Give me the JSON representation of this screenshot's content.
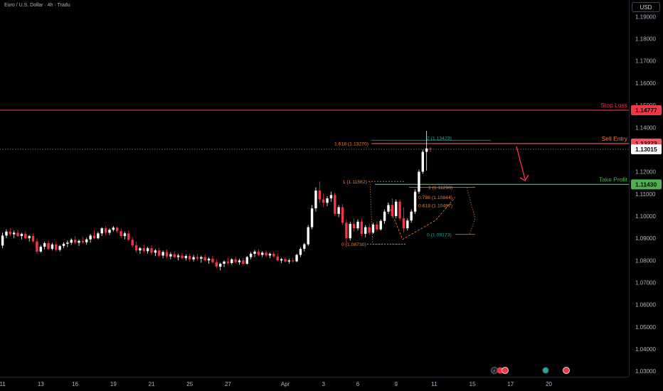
{
  "header": {
    "symbol_title": "Euro / U.S. Dollar · 4h · Tradu",
    "currency": "USD"
  },
  "chart_data": {
    "type": "candlestick",
    "ylim": [
      1.0275,
      1.1975
    ],
    "price_ticks": [
      "1.19000",
      "1.18000",
      "1.17000",
      "1.16000",
      "1.15000",
      "1.14000",
      "1.12000",
      "1.11000",
      "1.10000",
      "1.09000",
      "1.08000",
      "1.07000",
      "1.06000",
      "1.05000",
      "1.04000",
      "1.03000"
    ],
    "time_labels": [
      {
        "label": "11",
        "bar": 0
      },
      {
        "label": "13",
        "bar": 10
      },
      {
        "label": "16",
        "bar": 19
      },
      {
        "label": "19",
        "bar": 29
      },
      {
        "label": "21",
        "bar": 39
      },
      {
        "label": "25",
        "bar": 49
      },
      {
        "label": "27",
        "bar": 59
      },
      {
        "label": "Apr",
        "bar": 74
      },
      {
        "label": "3",
        "bar": 84
      },
      {
        "label": "6",
        "bar": 93
      },
      {
        "label": "9",
        "bar": 103
      },
      {
        "label": "11",
        "bar": 113
      },
      {
        "label": "15",
        "bar": 123
      },
      {
        "label": "17",
        "bar": 133
      },
      {
        "label": "20",
        "bar": 143
      }
    ],
    "colors": {
      "up": "#ffffff",
      "down": "#f23645",
      "stop": "#f23645",
      "entry": "#f7525f",
      "tp": "#4caf50",
      "fib": "#f57c3b",
      "fib_green": "#26a69a",
      "arrow": "#f23645"
    },
    "levels": {
      "stop_loss": {
        "label": "Stop Loss",
        "price": 1.14777,
        "price_text": "1.14777"
      },
      "sell_entry": {
        "label": "Sell Entry",
        "price": 1.13273,
        "price_text": "1.13273"
      },
      "take_profit": {
        "label": "Take Profit",
        "price": 1.1143,
        "price_text": "1.11430"
      },
      "last_price": {
        "price": 1.13015,
        "price_text": "1.13015"
      }
    },
    "fib_labels": {
      "f1618": "1.618 (1.13270)",
      "f2": "2 (1.13423)",
      "f1": "1 (1.11562)",
      "f0": "0 (1.08730)",
      "r1": "1 (1.11298)",
      "r786": "0.786 (1.10844)",
      "r618": "0.618 (1.10487)",
      "r0": "0 (1.09173)"
    },
    "candles": [
      {
        "o": 1.0867,
        "h": 1.0925,
        "l": 1.0855,
        "c": 1.0912
      },
      {
        "o": 1.0912,
        "h": 1.094,
        "l": 1.09,
        "c": 1.093
      },
      {
        "o": 1.093,
        "h": 1.0945,
        "l": 1.091,
        "c": 1.0918
      },
      {
        "o": 1.0918,
        "h": 1.0935,
        "l": 1.09,
        "c": 1.0925
      },
      {
        "o": 1.0925,
        "h": 1.0938,
        "l": 1.0905,
        "c": 1.091
      },
      {
        "o": 1.091,
        "h": 1.0925,
        "l": 1.0895,
        "c": 1.092
      },
      {
        "o": 1.092,
        "h": 1.0932,
        "l": 1.0895,
        "c": 1.09
      },
      {
        "o": 1.09,
        "h": 1.0915,
        "l": 1.0885,
        "c": 1.091
      },
      {
        "o": 1.091,
        "h": 1.0922,
        "l": 1.088,
        "c": 1.0886
      },
      {
        "o": 1.0886,
        "h": 1.09,
        "l": 1.083,
        "c": 1.084
      },
      {
        "o": 1.084,
        "h": 1.087,
        "l": 1.0835,
        "c": 1.0862
      },
      {
        "o": 1.0862,
        "h": 1.0885,
        "l": 1.085,
        "c": 1.0878
      },
      {
        "o": 1.0878,
        "h": 1.089,
        "l": 1.0845,
        "c": 1.0852
      },
      {
        "o": 1.0852,
        "h": 1.088,
        "l": 1.0845,
        "c": 1.0872
      },
      {
        "o": 1.0872,
        "h": 1.0885,
        "l": 1.084,
        "c": 1.0848
      },
      {
        "o": 1.0848,
        "h": 1.087,
        "l": 1.084,
        "c": 1.0865
      },
      {
        "o": 1.0865,
        "h": 1.0882,
        "l": 1.0855,
        "c": 1.0875
      },
      {
        "o": 1.0875,
        "h": 1.089,
        "l": 1.086,
        "c": 1.088
      },
      {
        "o": 1.088,
        "h": 1.09,
        "l": 1.087,
        "c": 1.0893
      },
      {
        "o": 1.0893,
        "h": 1.091,
        "l": 1.0875,
        "c": 1.088
      },
      {
        "o": 1.088,
        "h": 1.0895,
        "l": 1.0865,
        "c": 1.0888
      },
      {
        "o": 1.0888,
        "h": 1.0905,
        "l": 1.0875,
        "c": 1.0882
      },
      {
        "o": 1.0882,
        "h": 1.0902,
        "l": 1.087,
        "c": 1.0895
      },
      {
        "o": 1.0895,
        "h": 1.092,
        "l": 1.088,
        "c": 1.0912
      },
      {
        "o": 1.0912,
        "h": 1.0935,
        "l": 1.0895,
        "c": 1.09
      },
      {
        "o": 1.09,
        "h": 1.093,
        "l": 1.0895,
        "c": 1.0922
      },
      {
        "o": 1.0922,
        "h": 1.095,
        "l": 1.091,
        "c": 1.0945
      },
      {
        "o": 1.0945,
        "h": 1.0955,
        "l": 1.0915,
        "c": 1.0925
      },
      {
        "o": 1.0925,
        "h": 1.0945,
        "l": 1.0915,
        "c": 1.0938
      },
      {
        "o": 1.0938,
        "h": 1.0955,
        "l": 1.093,
        "c": 1.0948
      },
      {
        "o": 1.0948,
        "h": 1.0955,
        "l": 1.0925,
        "c": 1.0932
      },
      {
        "o": 1.0932,
        "h": 1.0945,
        "l": 1.09,
        "c": 1.091
      },
      {
        "o": 1.091,
        "h": 1.093,
        "l": 1.0895,
        "c": 1.0922
      },
      {
        "o": 1.0922,
        "h": 1.0935,
        "l": 1.0885,
        "c": 1.0893
      },
      {
        "o": 1.0893,
        "h": 1.0905,
        "l": 1.086,
        "c": 1.0868
      },
      {
        "o": 1.0868,
        "h": 1.0885,
        "l": 1.0835,
        "c": 1.0845
      },
      {
        "o": 1.0845,
        "h": 1.086,
        "l": 1.083,
        "c": 1.0855
      },
      {
        "o": 1.0855,
        "h": 1.087,
        "l": 1.0835,
        "c": 1.0842
      },
      {
        "o": 1.0842,
        "h": 1.0862,
        "l": 1.083,
        "c": 1.0855
      },
      {
        "o": 1.0855,
        "h": 1.0868,
        "l": 1.0825,
        "c": 1.0835
      },
      {
        "o": 1.0835,
        "h": 1.0852,
        "l": 1.082,
        "c": 1.0845
      },
      {
        "o": 1.0845,
        "h": 1.0858,
        "l": 1.0815,
        "c": 1.0822
      },
      {
        "o": 1.0822,
        "h": 1.0845,
        "l": 1.081,
        "c": 1.0838
      },
      {
        "o": 1.0838,
        "h": 1.085,
        "l": 1.081,
        "c": 1.0818
      },
      {
        "o": 1.0818,
        "h": 1.0838,
        "l": 1.0805,
        "c": 1.0828
      },
      {
        "o": 1.0828,
        "h": 1.0842,
        "l": 1.081,
        "c": 1.0815
      },
      {
        "o": 1.0815,
        "h": 1.083,
        "l": 1.08,
        "c": 1.0822
      },
      {
        "o": 1.0822,
        "h": 1.0835,
        "l": 1.0805,
        "c": 1.081
      },
      {
        "o": 1.081,
        "h": 1.0828,
        "l": 1.08,
        "c": 1.082
      },
      {
        "o": 1.082,
        "h": 1.083,
        "l": 1.0795,
        "c": 1.0805
      },
      {
        "o": 1.0805,
        "h": 1.0825,
        "l": 1.0795,
        "c": 1.0815
      },
      {
        "o": 1.0815,
        "h": 1.083,
        "l": 1.08,
        "c": 1.0808
      },
      {
        "o": 1.0808,
        "h": 1.0822,
        "l": 1.079,
        "c": 1.0815
      },
      {
        "o": 1.0815,
        "h": 1.0828,
        "l": 1.0795,
        "c": 1.08
      },
      {
        "o": 1.08,
        "h": 1.0815,
        "l": 1.0785,
        "c": 1.0808
      },
      {
        "o": 1.0808,
        "h": 1.082,
        "l": 1.0785,
        "c": 1.0792
      },
      {
        "o": 1.0792,
        "h": 1.0805,
        "l": 1.0765,
        "c": 1.0772
      },
      {
        "o": 1.0772,
        "h": 1.079,
        "l": 1.0755,
        "c": 1.0785
      },
      {
        "o": 1.0785,
        "h": 1.08,
        "l": 1.077,
        "c": 1.0795
      },
      {
        "o": 1.0795,
        "h": 1.0812,
        "l": 1.078,
        "c": 1.0788
      },
      {
        "o": 1.0788,
        "h": 1.081,
        "l": 1.078,
        "c": 1.0805
      },
      {
        "o": 1.0805,
        "h": 1.0818,
        "l": 1.0785,
        "c": 1.0792
      },
      {
        "o": 1.0792,
        "h": 1.0808,
        "l": 1.078,
        "c": 1.08
      },
      {
        "o": 1.08,
        "h": 1.0812,
        "l": 1.0778,
        "c": 1.0785
      },
      {
        "o": 1.0785,
        "h": 1.082,
        "l": 1.078,
        "c": 1.0815
      },
      {
        "o": 1.0815,
        "h": 1.0838,
        "l": 1.0805,
        "c": 1.083
      },
      {
        "o": 1.083,
        "h": 1.0848,
        "l": 1.0815,
        "c": 1.084
      },
      {
        "o": 1.084,
        "h": 1.0852,
        "l": 1.0818,
        "c": 1.0825
      },
      {
        "o": 1.0825,
        "h": 1.0842,
        "l": 1.0815,
        "c": 1.0835
      },
      {
        "o": 1.0835,
        "h": 1.0845,
        "l": 1.0815,
        "c": 1.0822
      },
      {
        "o": 1.0822,
        "h": 1.0835,
        "l": 1.081,
        "c": 1.083
      },
      {
        "o": 1.083,
        "h": 1.084,
        "l": 1.0812,
        "c": 1.0818
      },
      {
        "o": 1.0818,
        "h": 1.0832,
        "l": 1.0795,
        "c": 1.08
      },
      {
        "o": 1.08,
        "h": 1.0812,
        "l": 1.0788,
        "c": 1.0806
      },
      {
        "o": 1.0806,
        "h": 1.0815,
        "l": 1.079,
        "c": 1.0795
      },
      {
        "o": 1.0795,
        "h": 1.0808,
        "l": 1.0785,
        "c": 1.08
      },
      {
        "o": 1.08,
        "h": 1.0812,
        "l": 1.079,
        "c": 1.0796
      },
      {
        "o": 1.0796,
        "h": 1.083,
        "l": 1.0792,
        "c": 1.0825
      },
      {
        "o": 1.0825,
        "h": 1.086,
        "l": 1.0815,
        "c": 1.0852
      },
      {
        "o": 1.0852,
        "h": 1.088,
        "l": 1.084,
        "c": 1.0873
      },
      {
        "o": 1.0873,
        "h": 1.096,
        "l": 1.0865,
        "c": 1.095
      },
      {
        "o": 1.095,
        "h": 1.105,
        "l": 1.094,
        "c": 1.1035
      },
      {
        "o": 1.1035,
        "h": 1.113,
        "l": 1.102,
        "c": 1.1115
      },
      {
        "o": 1.1115,
        "h": 1.1156,
        "l": 1.106,
        "c": 1.1075
      },
      {
        "o": 1.1075,
        "h": 1.11,
        "l": 1.104,
        "c": 1.106
      },
      {
        "o": 1.106,
        "h": 1.109,
        "l": 1.1045,
        "c": 1.108
      },
      {
        "o": 1.108,
        "h": 1.111,
        "l": 1.1065,
        "c": 1.1095
      },
      {
        "o": 1.1095,
        "h": 1.1105,
        "l": 1.1,
        "c": 1.101
      },
      {
        "o": 1.101,
        "h": 1.105,
        "l": 1.0995,
        "c": 1.104
      },
      {
        "o": 1.104,
        "h": 1.1055,
        "l": 1.096,
        "c": 1.097
      },
      {
        "o": 1.097,
        "h": 1.0985,
        "l": 1.088,
        "c": 1.09
      },
      {
        "o": 1.09,
        "h": 1.0975,
        "l": 1.089,
        "c": 1.0965
      },
      {
        "o": 1.0965,
        "h": 1.099,
        "l": 1.093,
        "c": 1.0945
      },
      {
        "o": 1.0945,
        "h": 1.0985,
        "l": 1.0935,
        "c": 1.0975
      },
      {
        "o": 1.0975,
        "h": 1.099,
        "l": 1.091,
        "c": 1.092
      },
      {
        "o": 1.092,
        "h": 1.096,
        "l": 1.0905,
        "c": 1.095
      },
      {
        "o": 1.095,
        "h": 1.0965,
        "l": 1.0915,
        "c": 1.0925
      },
      {
        "o": 1.0925,
        "h": 1.097,
        "l": 1.092,
        "c": 1.0962
      },
      {
        "o": 1.0962,
        "h": 1.0975,
        "l": 1.093,
        "c": 1.094
      },
      {
        "o": 1.094,
        "h": 1.0985,
        "l": 1.0935,
        "c": 1.0978
      },
      {
        "o": 1.0978,
        "h": 1.103,
        "l": 1.0965,
        "c": 1.102
      },
      {
        "o": 1.102,
        "h": 1.106,
        "l": 1.101,
        "c": 1.105
      },
      {
        "o": 1.105,
        "h": 1.108,
        "l": 1.099,
        "c": 1.1
      },
      {
        "o": 1.1,
        "h": 1.1075,
        "l": 1.099,
        "c": 1.1065
      },
      {
        "o": 1.1065,
        "h": 1.1075,
        "l": 1.098,
        "c": 1.099
      },
      {
        "o": 1.099,
        "h": 1.104,
        "l": 1.0925,
        "c": 1.0945
      },
      {
        "o": 1.0945,
        "h": 1.099,
        "l": 1.0935,
        "c": 1.098
      },
      {
        "o": 1.098,
        "h": 1.103,
        "l": 1.097,
        "c": 1.102
      },
      {
        "o": 1.102,
        "h": 1.112,
        "l": 1.101,
        "c": 1.111
      },
      {
        "o": 1.111,
        "h": 1.121,
        "l": 1.11,
        "c": 1.12
      },
      {
        "o": 1.12,
        "h": 1.13,
        "l": 1.119,
        "c": 1.129
      },
      {
        "o": 1.129,
        "h": 1.1385,
        "l": 1.1205,
        "c": 1.1305
      },
      {
        "o": 1.1305,
        "h": 1.1312,
        "l": 1.1288,
        "c": 1.1301
      }
    ]
  }
}
